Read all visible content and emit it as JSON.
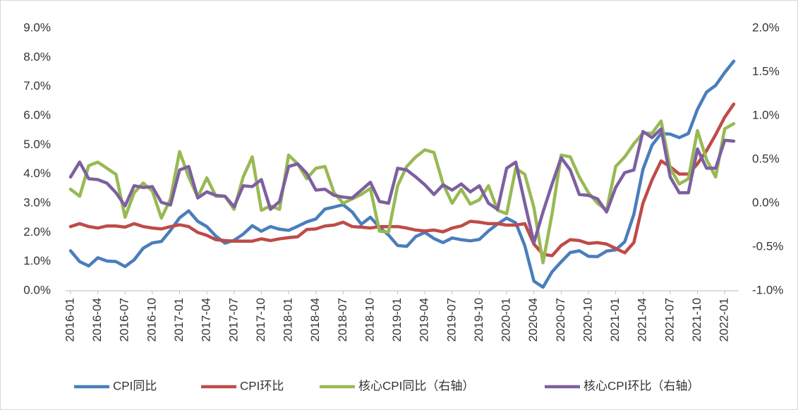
{
  "chart_data": {
    "type": "line",
    "categories": [
      "2016-01",
      null,
      null,
      "2016-04",
      null,
      null,
      "2016-07",
      null,
      null,
      "2016-10",
      null,
      null,
      "2017-01",
      null,
      null,
      "2017-04",
      null,
      null,
      "2017-07",
      null,
      null,
      "2017-10",
      null,
      null,
      "2018-01",
      null,
      null,
      "2018-04",
      null,
      null,
      "2018-07",
      null,
      null,
      "2018-10",
      null,
      null,
      "2019-01",
      null,
      null,
      "2019-04",
      null,
      null,
      "2019-07",
      null,
      null,
      "2019-10",
      null,
      null,
      "2020-01",
      null,
      null,
      "2020-04",
      null,
      null,
      "2020-07",
      null,
      null,
      "2020-10",
      null,
      null,
      "2021-01",
      null,
      null,
      "2021-04",
      null,
      null,
      "2021-07",
      null,
      null,
      "2021-10",
      null,
      null,
      "2022-01",
      null
    ],
    "series": [
      {
        "name": "CPI同比",
        "color": "#4a7ebb",
        "values": [
          1.37,
          1.0,
          0.85,
          1.13,
          1.02,
          1.0,
          0.83,
          1.06,
          1.46,
          1.64,
          1.69,
          2.07,
          2.5,
          2.74,
          2.38,
          2.2,
          1.87,
          1.63,
          1.73,
          1.94,
          2.23,
          2.04,
          2.2,
          2.11,
          2.07,
          2.21,
          2.36,
          2.46,
          2.8,
          2.87,
          2.95,
          2.7,
          2.28,
          2.52,
          2.18,
          1.91,
          1.55,
          1.52,
          1.86,
          2.0,
          1.79,
          1.65,
          1.81,
          1.75,
          1.71,
          1.76,
          2.05,
          2.29,
          2.49,
          2.33,
          1.54,
          0.33,
          0.12,
          0.65,
          0.99,
          1.31,
          1.37,
          1.18,
          1.17,
          1.36,
          1.4,
          1.68,
          2.62,
          4.16,
          4.99,
          5.39,
          5.37,
          5.25,
          5.39,
          6.22,
          6.81,
          7.04,
          7.48,
          7.87
        ]
      },
      {
        "name": "CPI环比",
        "color": "#be4b48",
        "values": [
          2.2,
          2.3,
          2.2,
          2.15,
          2.22,
          2.22,
          2.18,
          2.3,
          2.2,
          2.15,
          2.12,
          2.2,
          2.26,
          2.2,
          2.0,
          1.9,
          1.75,
          1.72,
          1.7,
          1.7,
          1.7,
          1.78,
          1.72,
          1.78,
          1.82,
          1.85,
          2.1,
          2.12,
          2.22,
          2.25,
          2.35,
          2.2,
          2.18,
          2.15,
          2.2,
          2.2,
          2.2,
          2.15,
          2.08,
          2.05,
          2.08,
          2.02,
          2.15,
          2.22,
          2.38,
          2.35,
          2.3,
          2.3,
          2.25,
          2.25,
          2.3,
          1.6,
          1.25,
          1.2,
          1.55,
          1.75,
          1.72,
          1.62,
          1.65,
          1.6,
          1.45,
          1.3,
          1.65,
          3.0,
          3.8,
          4.45,
          4.25,
          4.0,
          4.0,
          4.35,
          4.8,
          5.35,
          5.95,
          6.4
        ]
      },
      {
        "name": "核心CPI同比（右轴）",
        "color": "#98b954",
        "axis": "y2",
        "values": [
          0.16,
          0.08,
          0.43,
          0.47,
          0.4,
          0.33,
          -0.16,
          0.12,
          0.23,
          0.14,
          -0.17,
          0.05,
          0.59,
          0.3,
          0.07,
          0.29,
          0.08,
          0.08,
          -0.07,
          0.3,
          0.53,
          -0.08,
          -0.03,
          -0.07,
          0.55,
          0.45,
          0.28,
          0.4,
          0.42,
          0.12,
          0.0,
          0.05,
          0.1,
          0.17,
          -0.32,
          -0.33,
          0.2,
          0.42,
          0.53,
          0.61,
          0.58,
          0.22,
          0.0,
          0.16,
          -0.01,
          0.04,
          0.2,
          -0.08,
          -0.12,
          0.4,
          0.33,
          -0.05,
          -0.68,
          -0.12,
          0.55,
          0.53,
          0.3,
          0.12,
          0.0,
          -0.08,
          0.42,
          0.53,
          0.68,
          0.8,
          0.8,
          0.94,
          0.4,
          0.22,
          0.28,
          0.83,
          0.5,
          0.3,
          0.85,
          0.91
        ]
      },
      {
        "name": "核心CPI环比（右轴）",
        "color": "#7d60a0",
        "axis": "y2",
        "values": [
          0.3,
          0.47,
          0.28,
          0.27,
          0.23,
          0.12,
          -0.03,
          0.2,
          0.18,
          0.19,
          0.01,
          -0.02,
          0.38,
          0.42,
          0.06,
          0.13,
          0.09,
          0.08,
          -0.04,
          0.2,
          0.19,
          0.27,
          -0.07,
          0.02,
          0.42,
          0.45,
          0.34,
          0.15,
          0.16,
          0.09,
          0.07,
          0.06,
          0.15,
          0.24,
          0.02,
          0.0,
          0.4,
          0.38,
          0.3,
          0.21,
          0.1,
          0.21,
          0.15,
          0.22,
          0.13,
          0.2,
          0.0,
          -0.07,
          0.4,
          0.47,
          0.0,
          -0.45,
          -0.1,
          0.22,
          0.52,
          0.38,
          0.1,
          0.09,
          0.05,
          -0.1,
          0.18,
          0.35,
          0.38,
          0.82,
          0.75,
          0.85,
          0.3,
          0.12,
          0.12,
          0.62,
          0.4,
          0.4,
          0.72,
          0.71
        ]
      }
    ],
    "ylim": [
      0,
      9
    ],
    "yticks": [
      {
        "value": 0,
        "label": "0.0%"
      },
      {
        "value": 1,
        "label": "1.0%"
      },
      {
        "value": 2,
        "label": "2.0%"
      },
      {
        "value": 3,
        "label": "3.0%"
      },
      {
        "value": 4,
        "label": "4.0%"
      },
      {
        "value": 5,
        "label": "5.0%"
      },
      {
        "value": 6,
        "label": "6.0%"
      },
      {
        "value": 7,
        "label": "7.0%"
      },
      {
        "value": 8,
        "label": "8.0%"
      },
      {
        "value": 9,
        "label": "9.0%"
      }
    ],
    "y2lim": [
      -1,
      2
    ],
    "y2ticks": [
      {
        "value": -1,
        "label": "-1.0%"
      },
      {
        "value": -0.5,
        "label": "-0.5%"
      },
      {
        "value": 0,
        "label": "0.0%"
      },
      {
        "value": 0.5,
        "label": "0.5%"
      },
      {
        "value": 1,
        "label": "1.0%"
      },
      {
        "value": 1.5,
        "label": "1.5%"
      },
      {
        "value": 2,
        "label": "2.0%"
      }
    ],
    "grid": false,
    "legend": "bottom"
  }
}
